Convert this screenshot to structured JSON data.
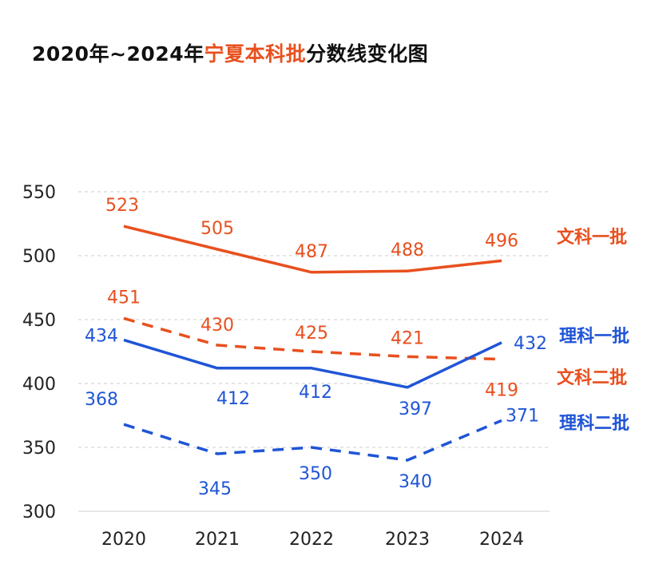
{
  "header": {
    "title_prefix": "2020年~2024年",
    "title_highlight": "宁夏本科批",
    "title_suffix": "分数线变化图"
  },
  "chart_data": {
    "type": "line",
    "title": "2020年~2024年宁夏本科批分数线变化图",
    "xlabel": "",
    "ylabel": "",
    "x": [
      "2020",
      "2021",
      "2022",
      "2023",
      "2024"
    ],
    "ylim": [
      300,
      550
    ],
    "yticks": [
      300,
      350,
      400,
      450,
      500,
      550
    ],
    "grid": "horizontal-dashed",
    "legend": "right-end labels",
    "series": [
      {
        "name": "文科一批",
        "values": [
          523,
          505,
          487,
          488,
          496
        ],
        "color": "#e8501e",
        "style": "solid"
      },
      {
        "name": "文科二批",
        "values": [
          451,
          430,
          425,
          421,
          419
        ],
        "color": "#e8501e",
        "style": "dashed"
      },
      {
        "name": "理科一批",
        "values": [
          434,
          412,
          412,
          397,
          432
        ],
        "color": "#1f55d6",
        "style": "solid"
      },
      {
        "name": "理科二批",
        "values": [
          368,
          345,
          350,
          340,
          371
        ],
        "color": "#1f55d6",
        "style": "dashed"
      }
    ]
  }
}
